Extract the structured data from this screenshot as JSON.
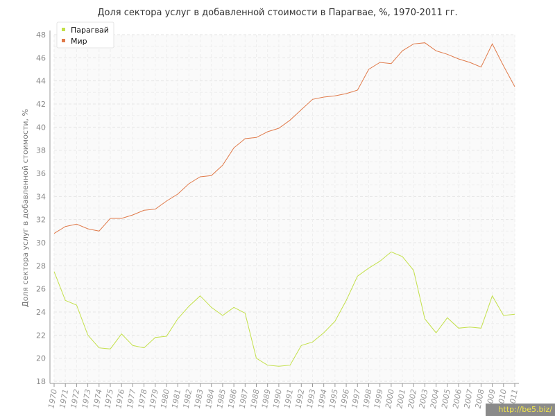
{
  "chart_data": {
    "type": "line",
    "title": "Доля сектора услуг в добавленной стоимости в Парагвае, %, 1970-2011 гг.",
    "ylabel": "Доля сектора услуг в добавленной стоимости, %",
    "xlabel": "",
    "ylim": [
      18,
      48
    ],
    "yticks": [
      18,
      20,
      22,
      24,
      26,
      28,
      30,
      32,
      34,
      36,
      38,
      40,
      42,
      44,
      46,
      48
    ],
    "grid": true,
    "legend": "top-left",
    "categories": [
      "1970",
      "1971",
      "1972",
      "1973",
      "1974",
      "1975",
      "1976",
      "1977",
      "1978",
      "1979",
      "1980",
      "1981",
      "1982",
      "1983",
      "1984",
      "1985",
      "1986",
      "1987",
      "1988",
      "1989",
      "1990",
      "1991",
      "1992",
      "1993",
      "1994",
      "1995",
      "1996",
      "1997",
      "1998",
      "1999",
      "2000",
      "2001",
      "2002",
      "2003",
      "2004",
      "2005",
      "2006",
      "2007",
      "2008",
      "2009",
      "2010",
      "2011"
    ],
    "series": [
      {
        "name": "Парагвай",
        "color": "#c3e04a",
        "values": [
          27.5,
          25.0,
          24.6,
          22.0,
          20.9,
          20.8,
          22.1,
          21.1,
          20.9,
          21.8,
          21.9,
          23.4,
          24.5,
          25.4,
          24.4,
          23.7,
          24.4,
          23.9,
          20.0,
          19.4,
          19.3,
          19.4,
          21.1,
          21.4,
          22.2,
          23.2,
          25.0,
          27.1,
          27.8,
          28.4,
          29.2,
          28.8,
          27.6,
          23.4,
          22.2,
          23.5,
          22.6,
          22.7,
          22.6,
          25.4,
          23.7,
          23.8
        ]
      },
      {
        "name": "Мир",
        "color": "#e07a4a",
        "values": [
          30.8,
          31.4,
          31.6,
          31.2,
          31.0,
          32.1,
          32.1,
          32.4,
          32.8,
          32.9,
          33.6,
          34.2,
          35.1,
          35.7,
          35.8,
          36.7,
          38.2,
          39.0,
          39.1,
          39.6,
          39.9,
          40.6,
          41.5,
          42.4,
          42.6,
          42.7,
          42.9,
          43.2,
          45.0,
          45.6,
          45.5,
          46.6,
          47.2,
          47.3,
          46.6,
          46.3,
          45.9,
          45.6,
          45.2,
          47.2,
          45.3,
          43.5
        ]
      }
    ]
  },
  "watermark": "http://be5.biz/"
}
